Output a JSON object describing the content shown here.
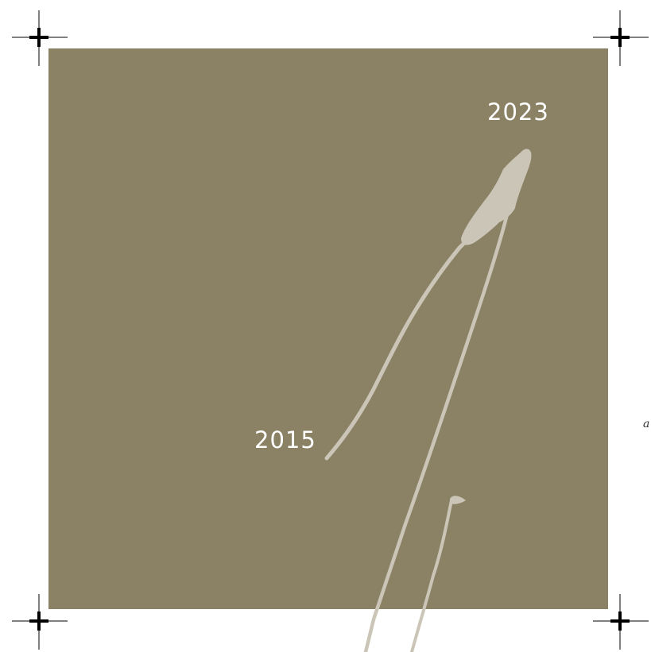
{
  "colors": {
    "panel_bg": "#8b8265",
    "brush_stroke": "#cbc5b7",
    "label_text": "#ffffff",
    "crop_mark": "#000000"
  },
  "labels": {
    "year_top": "2023",
    "year_bottom": "2015",
    "edge_fragment": "a"
  },
  "icons": {
    "crop_marks": [
      "crop-mark-icon",
      "crop-mark-icon",
      "crop-mark-icon",
      "crop-mark-icon"
    ],
    "artwork": "brush-stroke-icon"
  }
}
